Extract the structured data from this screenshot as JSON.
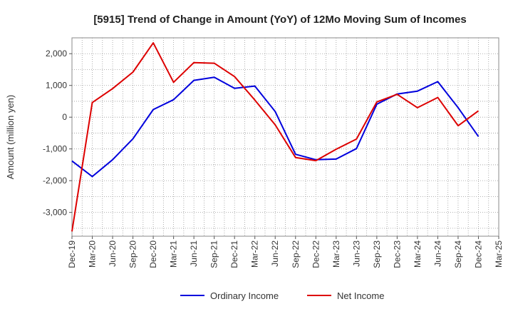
{
  "chart_data": {
    "type": "line",
    "title": "[5915]  Trend of Change in Amount (YoY) of 12Mo Moving Sum of Incomes",
    "xlabel": "",
    "ylabel": "Amount (million yen)",
    "categories": [
      "Dec-19",
      "Mar-20",
      "Jun-20",
      "Sep-20",
      "Dec-20",
      "Mar-21",
      "Jun-21",
      "Sep-21",
      "Dec-21",
      "Mar-22",
      "Jun-22",
      "Sep-22",
      "Dec-22",
      "Mar-23",
      "Jun-23",
      "Sep-23",
      "Dec-23",
      "Mar-24",
      "Jun-24",
      "Sep-24",
      "Dec-24",
      "Mar-25"
    ],
    "ylim": [
      -3750,
      2500
    ],
    "yticks": [
      2000,
      1000,
      0,
      -1000,
      -2000,
      -3000
    ],
    "ytick_labels": [
      "2,000",
      "1,000",
      "0",
      "-1,000",
      "-2,000",
      "-3,000"
    ],
    "grid": true,
    "legend_position": "bottom",
    "series": [
      {
        "name": "Ordinary Income",
        "color": "#0000dd",
        "values": [
          -1380,
          -1870,
          -1340,
          -680,
          240,
          550,
          1160,
          1260,
          910,
          980,
          180,
          -1170,
          -1340,
          -1320,
          -990,
          410,
          730,
          820,
          1120,
          300,
          -610,
          null
        ]
      },
      {
        "name": "Net Income",
        "color": "#dd0000",
        "values": [
          -3600,
          460,
          900,
          1420,
          2340,
          1100,
          1720,
          1700,
          1280,
          540,
          -240,
          -1270,
          -1370,
          -1010,
          -690,
          480,
          720,
          300,
          620,
          -270,
          200,
          null
        ]
      }
    ]
  }
}
